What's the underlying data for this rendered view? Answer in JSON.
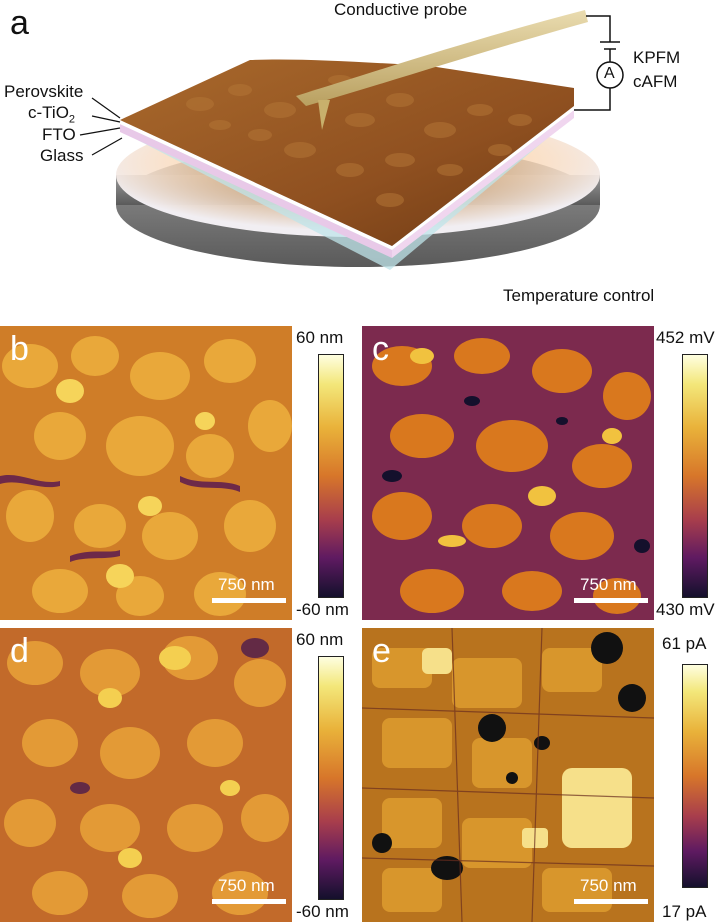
{
  "panels": {
    "a": {
      "letter": "a",
      "labels": {
        "probe": "Conductive probe",
        "kpfm": "KPFM",
        "cafm": "cAFM",
        "ammeter": "A",
        "perovskite": "Perovskite",
        "tio2_prefix": "c-TiO",
        "tio2_sub": "2",
        "fto": "FTO",
        "glass": "Glass",
        "temperature": "Temperature control"
      }
    },
    "b": {
      "letter": "b",
      "scale": "750 nm",
      "cbar_max": "60 nm",
      "cbar_min": "-60 nm"
    },
    "c": {
      "letter": "c",
      "scale": "750 nm",
      "cbar_max": "452 mV",
      "cbar_min": "430 mV"
    },
    "d": {
      "letter": "d",
      "scale": "750 nm",
      "cbar_max": "60 nm",
      "cbar_min": "-60 nm"
    },
    "e": {
      "letter": "e",
      "scale": "750 nm",
      "cbar_max": "61 pA",
      "cbar_min": "17 pA"
    }
  },
  "colors": {
    "topo_light": "#f2cf4a",
    "topo_dark": "#6a1f5a",
    "film": "#9a5a20",
    "probe": "#d9c38a"
  }
}
